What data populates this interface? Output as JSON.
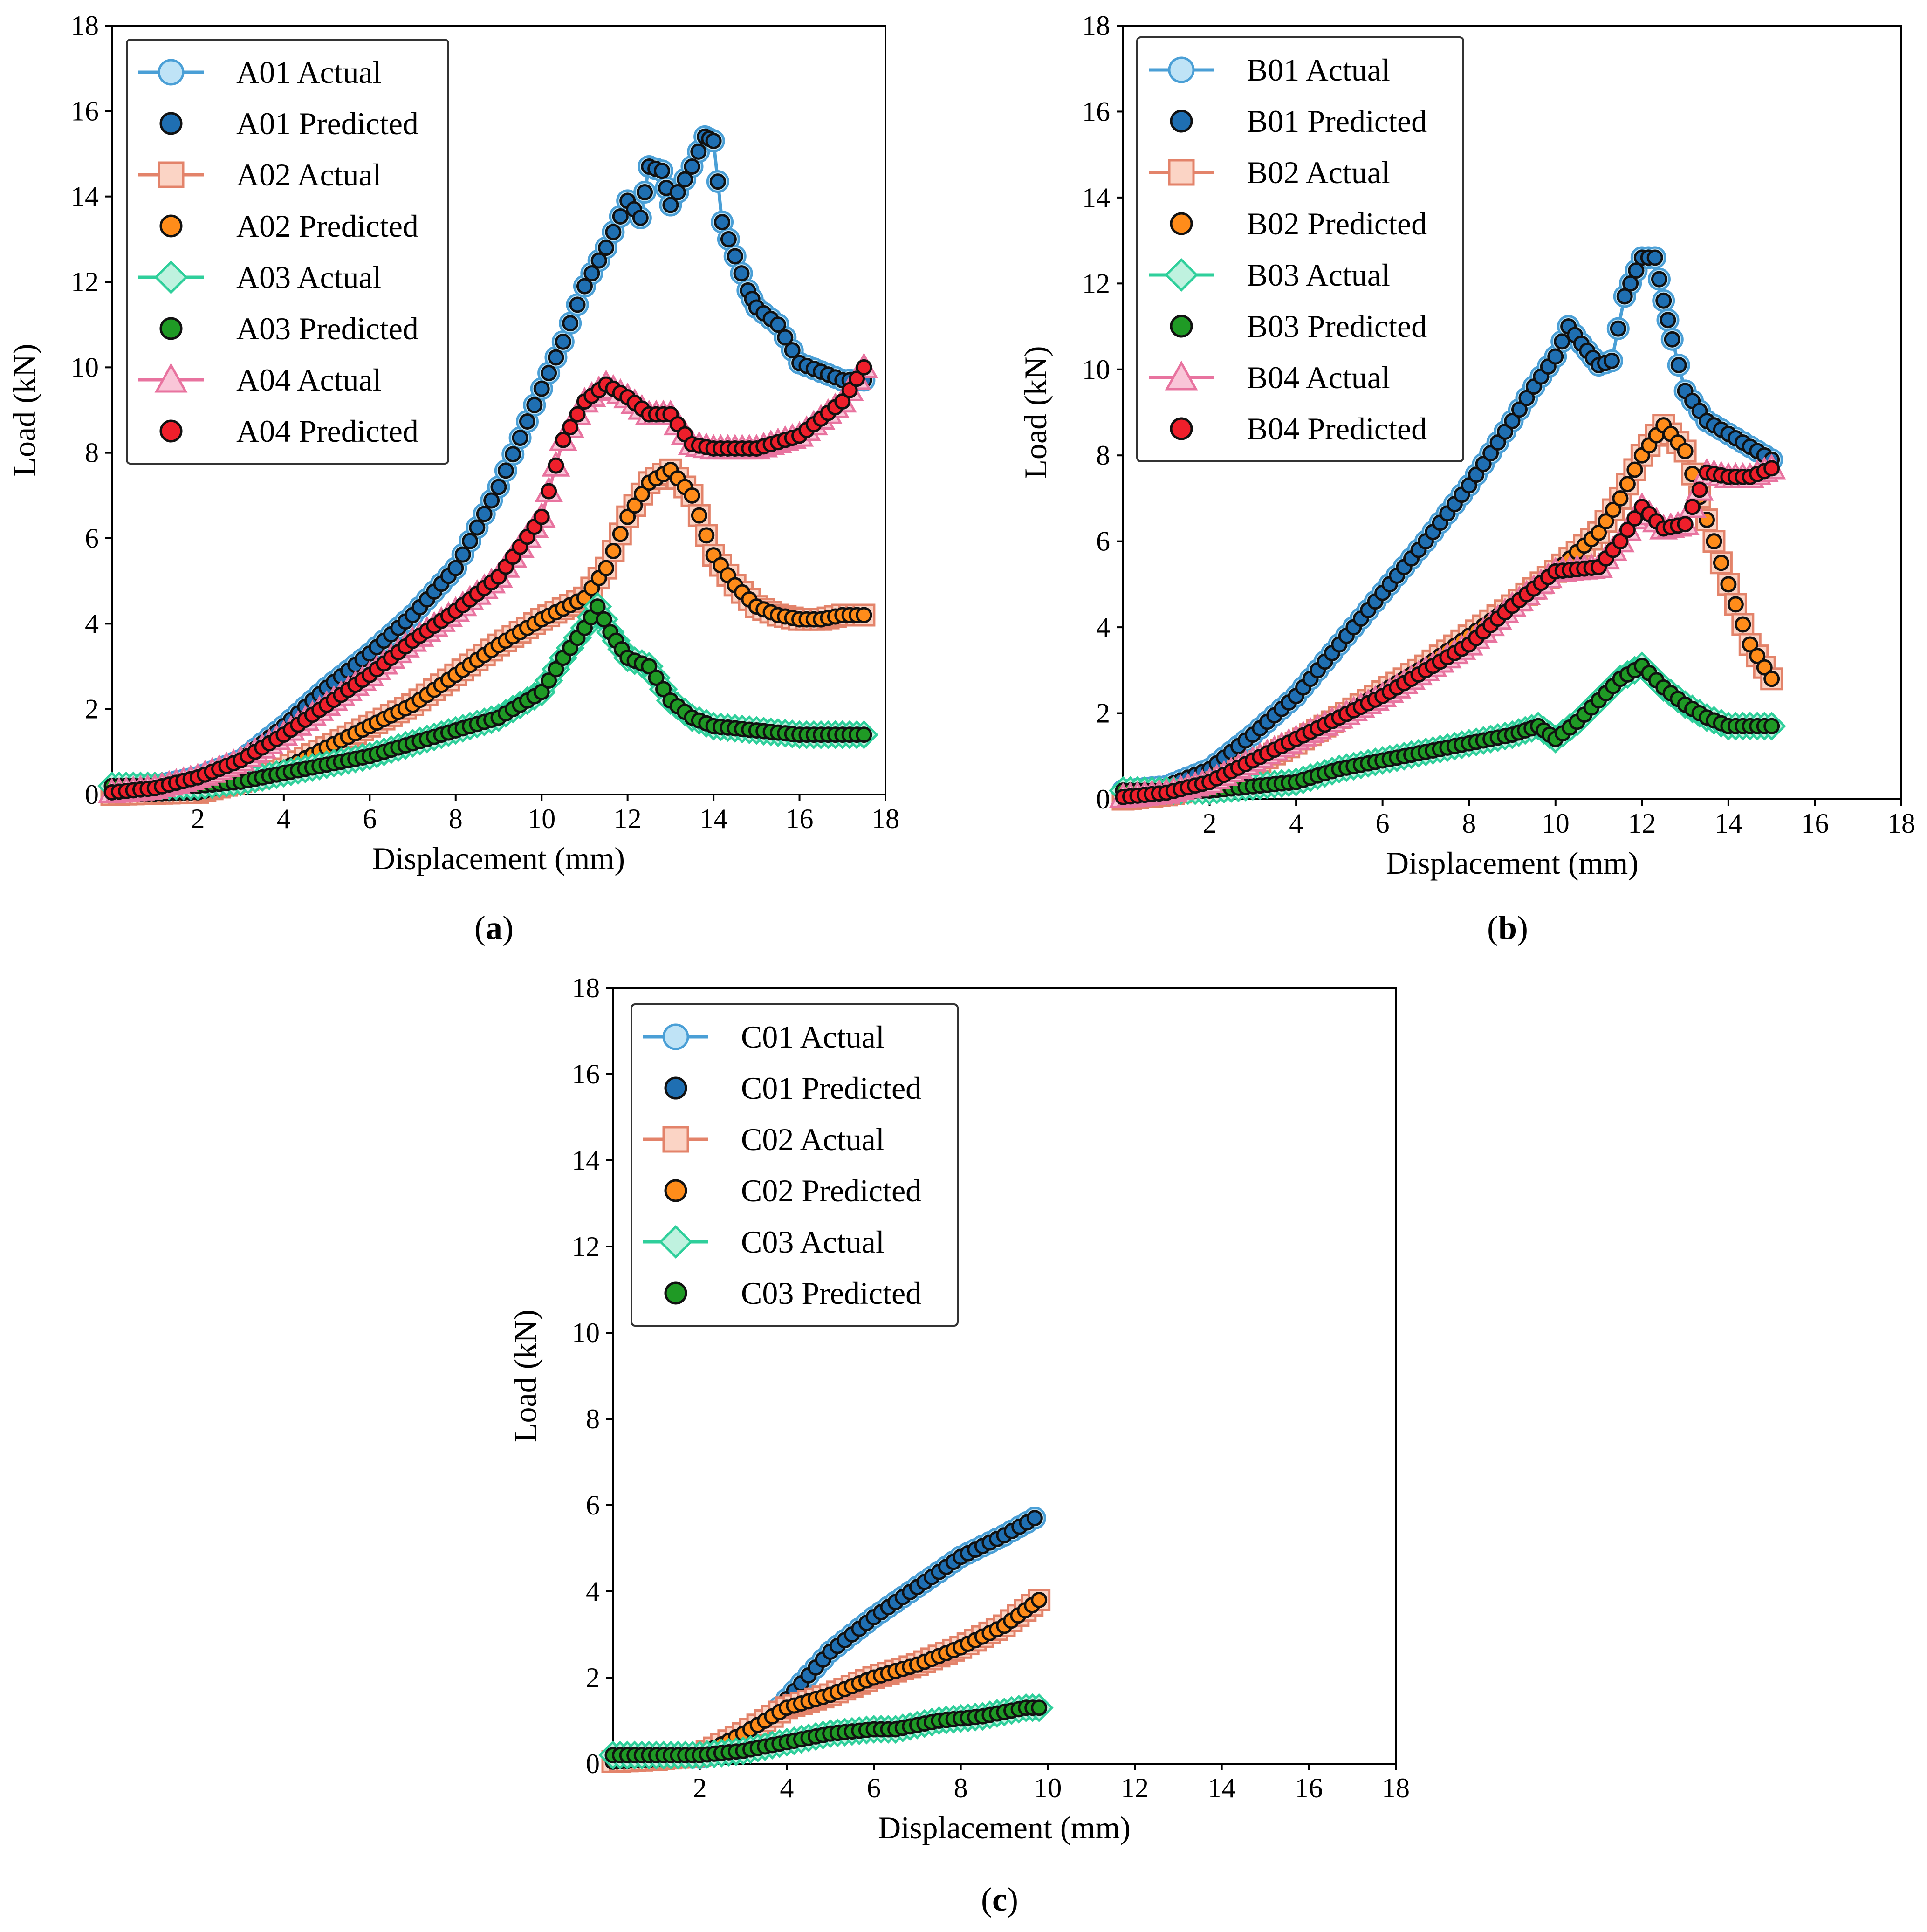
{
  "colors": {
    "blue_line": "#4a9fd6",
    "blue_fill": "#bfe3f6",
    "blue_pred": "#1f6fb2",
    "orange_line": "#e3836a",
    "orange_fill": "#fbd4c5",
    "orange_pred": "#ff8c1a",
    "green_line": "#2fcf9b",
    "green_fill": "#bff2df",
    "green_pred": "#1f9a25",
    "pink_line": "#e8739f",
    "pink_fill": "#f9c6d8",
    "red_pred": "#ef1f2b"
  },
  "chart_data": [
    {
      "panel": "a",
      "panel_label_text": "a",
      "type": "line",
      "xlabel": "Displacement (mm)",
      "ylabel": "Load (kN)",
      "xlim": [
        0,
        18
      ],
      "ylim": [
        0,
        18
      ],
      "xticks": [
        2,
        4,
        6,
        8,
        10,
        12,
        14,
        16,
        18
      ],
      "yticks": [
        0,
        2,
        4,
        6,
        8,
        10,
        12,
        14,
        16,
        18
      ],
      "legend_position": "top-left",
      "series": [
        {
          "name": "A01",
          "actual_label": "A01 Actual",
          "predicted_label": "A01 Predicted",
          "marker": "circle",
          "color": "blue",
          "points": [
            [
              0,
              0.15
            ],
            [
              1,
              0.2
            ],
            [
              2,
              0.4
            ],
            [
              3,
              0.8
            ],
            [
              4,
              1.6
            ],
            [
              5,
              2.5
            ],
            [
              6,
              3.3
            ],
            [
              7,
              4.2
            ],
            [
              8,
              5.3
            ],
            [
              9,
              7.2
            ],
            [
              10,
              9.5
            ],
            [
              10.5,
              10.6
            ],
            [
              11,
              11.9
            ],
            [
              11.5,
              12.8
            ],
            [
              12,
              13.9
            ],
            [
              12.3,
              13.5
            ],
            [
              12.5,
              14.7
            ],
            [
              12.8,
              14.6
            ],
            [
              13,
              13.8
            ],
            [
              13.5,
              14.7
            ],
            [
              13.8,
              15.4
            ],
            [
              14,
              15.3
            ],
            [
              14.2,
              13.4
            ],
            [
              14.5,
              12.6
            ],
            [
              14.8,
              11.8
            ],
            [
              15,
              11.4
            ],
            [
              15.5,
              11.0
            ],
            [
              16,
              10.1
            ],
            [
              16.5,
              9.9
            ],
            [
              17,
              9.7
            ],
            [
              17.5,
              9.7
            ]
          ]
        },
        {
          "name": "A02",
          "actual_label": "A02 Actual",
          "predicted_label": "A02 Predicted",
          "marker": "square",
          "color": "orange",
          "points": [
            [
              0,
              0
            ],
            [
              2,
              0.05
            ],
            [
              3,
              0.3
            ],
            [
              4,
              0.6
            ],
            [
              5,
              1.1
            ],
            [
              6,
              1.6
            ],
            [
              7,
              2.1
            ],
            [
              8,
              2.8
            ],
            [
              9,
              3.5
            ],
            [
              10,
              4.1
            ],
            [
              11,
              4.6
            ],
            [
              11.5,
              5.3
            ],
            [
              12,
              6.5
            ],
            [
              12.5,
              7.3
            ],
            [
              13,
              7.6
            ],
            [
              13.5,
              7.0
            ],
            [
              14,
              5.6
            ],
            [
              14.5,
              4.9
            ],
            [
              15,
              4.4
            ],
            [
              15.5,
              4.2
            ],
            [
              16,
              4.1
            ],
            [
              16.5,
              4.1
            ],
            [
              17,
              4.2
            ],
            [
              17.5,
              4.2
            ]
          ]
        },
        {
          "name": "A03",
          "actual_label": "A03 Actual",
          "predicted_label": "A03 Predicted",
          "marker": "diamond",
          "color": "green",
          "points": [
            [
              0,
              0.2
            ],
            [
              2,
              0.2
            ],
            [
              3,
              0.3
            ],
            [
              4,
              0.5
            ],
            [
              5,
              0.7
            ],
            [
              6,
              0.9
            ],
            [
              7,
              1.2
            ],
            [
              8,
              1.5
            ],
            [
              9,
              1.8
            ],
            [
              10,
              2.4
            ],
            [
              10.5,
              3.2
            ],
            [
              11,
              3.9
            ],
            [
              11.3,
              4.4
            ],
            [
              11.6,
              3.8
            ],
            [
              12,
              3.2
            ],
            [
              12.5,
              3.0
            ],
            [
              13,
              2.2
            ],
            [
              13.5,
              1.8
            ],
            [
              14,
              1.6
            ],
            [
              15,
              1.5
            ],
            [
              16,
              1.4
            ],
            [
              17,
              1.4
            ],
            [
              17.5,
              1.4
            ]
          ]
        },
        {
          "name": "A04",
          "actual_label": "A04 Actual",
          "predicted_label": "A04 Predicted",
          "marker": "triangle",
          "color": "pink",
          "points": [
            [
              0,
              0.05
            ],
            [
              1,
              0.15
            ],
            [
              2,
              0.4
            ],
            [
              3,
              0.8
            ],
            [
              4,
              1.4
            ],
            [
              5,
              2.1
            ],
            [
              6,
              2.8
            ],
            [
              7,
              3.6
            ],
            [
              8,
              4.3
            ],
            [
              9,
              5.1
            ],
            [
              10,
              6.5
            ],
            [
              10.5,
              8.3
            ],
            [
              11,
              9.2
            ],
            [
              11.5,
              9.6
            ],
            [
              12,
              9.3
            ],
            [
              12.5,
              8.9
            ],
            [
              13,
              8.9
            ],
            [
              13.5,
              8.2
            ],
            [
              14,
              8.1
            ],
            [
              15,
              8.1
            ],
            [
              16,
              8.4
            ],
            [
              16.5,
              8.8
            ],
            [
              17,
              9.2
            ],
            [
              17.5,
              10.0
            ]
          ]
        }
      ]
    },
    {
      "panel": "b",
      "panel_label_text": "b",
      "type": "line",
      "xlabel": "Displacement (mm)",
      "ylabel": "Load (kN)",
      "xlim": [
        0,
        18
      ],
      "ylim": [
        0,
        18
      ],
      "xticks": [
        2,
        4,
        6,
        8,
        10,
        12,
        14,
        16,
        18
      ],
      "yticks": [
        0,
        2,
        4,
        6,
        8,
        10,
        12,
        14,
        16,
        18
      ],
      "legend_position": "top-left",
      "series": [
        {
          "name": "B01",
          "actual_label": "B01 Actual",
          "predicted_label": "B01 Predicted",
          "marker": "circle",
          "color": "blue",
          "points": [
            [
              0,
              0.2
            ],
            [
              1,
              0.3
            ],
            [
              2,
              0.7
            ],
            [
              3,
              1.5
            ],
            [
              4,
              2.4
            ],
            [
              5,
              3.6
            ],
            [
              6,
              4.8
            ],
            [
              7,
              6.0
            ],
            [
              8,
              7.3
            ],
            [
              9,
              8.8
            ],
            [
              9.5,
              9.6
            ],
            [
              10,
              10.3
            ],
            [
              10.3,
              11.0
            ],
            [
              10.6,
              10.6
            ],
            [
              11,
              10.1
            ],
            [
              11.3,
              10.2
            ],
            [
              11.6,
              11.7
            ],
            [
              12,
              12.6
            ],
            [
              12.3,
              12.6
            ],
            [
              12.5,
              11.6
            ],
            [
              12.7,
              10.7
            ],
            [
              13,
              9.5
            ],
            [
              13.5,
              8.8
            ],
            [
              14,
              8.5
            ],
            [
              14.5,
              8.2
            ],
            [
              15,
              7.9
            ]
          ]
        },
        {
          "name": "B02",
          "actual_label": "B02 Actual",
          "predicted_label": "B02 Predicted",
          "marker": "square",
          "color": "orange",
          "points": [
            [
              0,
              0
            ],
            [
              1,
              0.1
            ],
            [
              2,
              0.3
            ],
            [
              3,
              0.8
            ],
            [
              4,
              1.3
            ],
            [
              5,
              1.9
            ],
            [
              6,
              2.5
            ],
            [
              7,
              3.1
            ],
            [
              8,
              3.8
            ],
            [
              9,
              4.5
            ],
            [
              10,
              5.3
            ],
            [
              11,
              6.2
            ],
            [
              11.5,
              7.0
            ],
            [
              12,
              8.0
            ],
            [
              12.5,
              8.7
            ],
            [
              13,
              8.1
            ],
            [
              13.5,
              6.5
            ],
            [
              14,
              5.0
            ],
            [
              14.5,
              3.6
            ],
            [
              15,
              2.8
            ]
          ]
        },
        {
          "name": "B03",
          "actual_label": "B03 Actual",
          "predicted_label": "B03 Predicted",
          "marker": "diamond",
          "color": "green",
          "points": [
            [
              0,
              0.2
            ],
            [
              2,
              0.2
            ],
            [
              3,
              0.3
            ],
            [
              4,
              0.4
            ],
            [
              5,
              0.7
            ],
            [
              6,
              0.9
            ],
            [
              7,
              1.1
            ],
            [
              8,
              1.3
            ],
            [
              9,
              1.5
            ],
            [
              9.6,
              1.7
            ],
            [
              10,
              1.4
            ],
            [
              10.5,
              1.8
            ],
            [
              11,
              2.3
            ],
            [
              11.5,
              2.8
            ],
            [
              12,
              3.1
            ],
            [
              12.5,
              2.6
            ],
            [
              13,
              2.2
            ],
            [
              13.5,
              1.9
            ],
            [
              14,
              1.7
            ],
            [
              15,
              1.7
            ]
          ]
        },
        {
          "name": "B04",
          "actual_label": "B04 Actual",
          "predicted_label": "B04 Predicted",
          "marker": "triangle",
          "color": "pink",
          "points": [
            [
              0,
              0.05
            ],
            [
              1,
              0.15
            ],
            [
              2,
              0.4
            ],
            [
              3,
              0.9
            ],
            [
              4,
              1.4
            ],
            [
              5,
              1.9
            ],
            [
              6,
              2.4
            ],
            [
              7,
              3.0
            ],
            [
              8,
              3.6
            ],
            [
              9,
              4.5
            ],
            [
              10,
              5.3
            ],
            [
              11,
              5.4
            ],
            [
              11.5,
              6.0
            ],
            [
              12,
              6.8
            ],
            [
              12.5,
              6.3
            ],
            [
              13,
              6.4
            ],
            [
              13.5,
              7.6
            ],
            [
              14,
              7.5
            ],
            [
              14.5,
              7.5
            ],
            [
              15,
              7.7
            ]
          ]
        }
      ]
    },
    {
      "panel": "c",
      "panel_label_text": "c",
      "type": "line",
      "xlabel": "Displacement (mm)",
      "ylabel": "Load (kN)",
      "xlim": [
        0,
        18
      ],
      "ylim": [
        0,
        18
      ],
      "xticks": [
        2,
        4,
        6,
        8,
        10,
        12,
        14,
        16,
        18
      ],
      "yticks": [
        0,
        2,
        4,
        6,
        8,
        10,
        12,
        14,
        16,
        18
      ],
      "legend_position": "top-left",
      "series": [
        {
          "name": "C01",
          "actual_label": "C01 Actual",
          "predicted_label": "C01 Predicted",
          "marker": "circle",
          "color": "blue",
          "points": [
            [
              0,
              0.1
            ],
            [
              1,
              0.15
            ],
            [
              2,
              0.15
            ],
            [
              3,
              0.4
            ],
            [
              4,
              1.5
            ],
            [
              5,
              2.6
            ],
            [
              6,
              3.4
            ],
            [
              7,
              4.1
            ],
            [
              8,
              4.8
            ],
            [
              9,
              5.3
            ],
            [
              9.7,
              5.7
            ]
          ]
        },
        {
          "name": "C02",
          "actual_label": "C02 Actual",
          "predicted_label": "C02 Predicted",
          "marker": "square",
          "color": "orange",
          "points": [
            [
              0,
              0.05
            ],
            [
              1,
              0.1
            ],
            [
              2,
              0.2
            ],
            [
              3,
              0.7
            ],
            [
              4,
              1.3
            ],
            [
              5,
              1.6
            ],
            [
              6,
              2.0
            ],
            [
              7,
              2.3
            ],
            [
              8,
              2.7
            ],
            [
              9,
              3.2
            ],
            [
              9.8,
              3.8
            ]
          ]
        },
        {
          "name": "C03",
          "actual_label": "C03 Actual",
          "predicted_label": "C03 Predicted",
          "marker": "diamond",
          "color": "green",
          "points": [
            [
              0,
              0.2
            ],
            [
              2,
              0.2
            ],
            [
              3,
              0.3
            ],
            [
              4,
              0.5
            ],
            [
              5,
              0.7
            ],
            [
              6,
              0.8
            ],
            [
              6.5,
              0.8
            ],
            [
              7.5,
              1.0
            ],
            [
              8.5,
              1.1
            ],
            [
              9.5,
              1.3
            ],
            [
              9.8,
              1.3
            ]
          ]
        }
      ]
    }
  ]
}
